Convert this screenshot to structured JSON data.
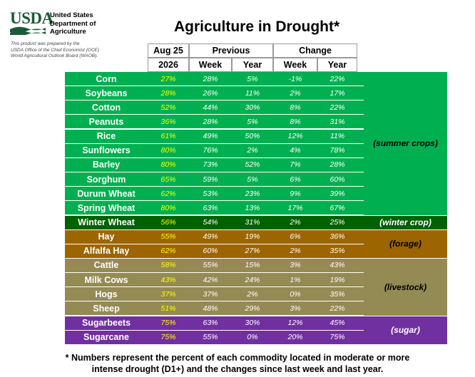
{
  "header": {
    "logo_text": "USDA",
    "org_lines": [
      "United States",
      "Department of",
      "Agriculture"
    ],
    "prepared_lines": [
      "This product was prepared by the",
      "USDA Office of the Chief Economist (OCE)",
      "World Agricultural Outlook Board (WAOB)."
    ],
    "title": "Agriculture in Drought*"
  },
  "table": {
    "header_top": {
      "current": "Aug 25",
      "previous": "Previous",
      "change": "Change"
    },
    "header_sub": {
      "current": "2026",
      "prev_week": "Week",
      "prev_year": "Year",
      "chg_week": "Week",
      "chg_year": "Year"
    },
    "rows": [
      {
        "name": "Corn",
        "current": "27%",
        "prev_week": "28%",
        "prev_year": "5%",
        "chg_week": "-1%",
        "chg_year": "22%",
        "group": "summer"
      },
      {
        "name": "Soybeans",
        "current": "28%",
        "prev_week": "26%",
        "prev_year": "11%",
        "chg_week": "2%",
        "chg_year": "17%",
        "group": "summer"
      },
      {
        "name": "Cotton",
        "current": "52%",
        "prev_week": "44%",
        "prev_year": "30%",
        "chg_week": "8%",
        "chg_year": "22%",
        "group": "summer"
      },
      {
        "name": "Peanuts",
        "current": "36%",
        "prev_week": "28%",
        "prev_year": "5%",
        "chg_week": "8%",
        "chg_year": "31%",
        "group": "summer"
      },
      {
        "name": "Rice",
        "current": "61%",
        "prev_week": "49%",
        "prev_year": "50%",
        "chg_week": "12%",
        "chg_year": "11%",
        "group": "summer"
      },
      {
        "name": "Sunflowers",
        "current": "80%",
        "prev_week": "76%",
        "prev_year": "2%",
        "chg_week": "4%",
        "chg_year": "78%",
        "group": "summer"
      },
      {
        "name": "Barley",
        "current": "80%",
        "prev_week": "73%",
        "prev_year": "52%",
        "chg_week": "7%",
        "chg_year": "28%",
        "group": "summer"
      },
      {
        "name": "Sorghum",
        "current": "65%",
        "prev_week": "59%",
        "prev_year": "5%",
        "chg_week": "6%",
        "chg_year": "60%",
        "group": "summer"
      },
      {
        "name": "Durum Wheat",
        "current": "62%",
        "prev_week": "53%",
        "prev_year": "23%",
        "chg_week": "9%",
        "chg_year": "39%",
        "group": "summer"
      },
      {
        "name": "Spring Wheat",
        "current": "80%",
        "prev_week": "63%",
        "prev_year": "13%",
        "chg_week": "17%",
        "chg_year": "67%",
        "group": "summer"
      },
      {
        "name": "Winter Wheat",
        "current": "56%",
        "prev_week": "54%",
        "prev_year": "31%",
        "chg_week": "2%",
        "chg_year": "25%",
        "group": "winter"
      },
      {
        "name": "Hay",
        "current": "55%",
        "prev_week": "49%",
        "prev_year": "19%",
        "chg_week": "6%",
        "chg_year": "36%",
        "group": "forage"
      },
      {
        "name": "Alfalfa Hay",
        "current": "62%",
        "prev_week": "60%",
        "prev_year": "27%",
        "chg_week": "2%",
        "chg_year": "35%",
        "group": "forage"
      },
      {
        "name": "Cattle",
        "current": "58%",
        "prev_week": "55%",
        "prev_year": "15%",
        "chg_week": "3%",
        "chg_year": "43%",
        "group": "livestock"
      },
      {
        "name": "Milk Cows",
        "current": "43%",
        "prev_week": "42%",
        "prev_year": "24%",
        "chg_week": "1%",
        "chg_year": "19%",
        "group": "livestock"
      },
      {
        "name": "Hogs",
        "current": "37%",
        "prev_week": "37%",
        "prev_year": "2%",
        "chg_week": "0%",
        "chg_year": "35%",
        "group": "livestock"
      },
      {
        "name": "Sheep",
        "current": "51%",
        "prev_week": "48%",
        "prev_year": "29%",
        "chg_week": "3%",
        "chg_year": "22%",
        "group": "livestock"
      },
      {
        "name": "Sugarbeets",
        "current": "75%",
        "prev_week": "63%",
        "prev_year": "30%",
        "chg_week": "12%",
        "chg_year": "45%",
        "group": "sugar"
      },
      {
        "name": "Sugarcane",
        "current": "75%",
        "prev_week": "55%",
        "prev_year": "0%",
        "chg_week": "20%",
        "chg_year": "75%",
        "group": "sugar"
      }
    ],
    "groups": {
      "summer": {
        "label": "(summer crops)",
        "bg": "#00b050",
        "text": "#000000",
        "name_text": "#ffffff",
        "current_text": "#ffff00",
        "value_text": "#ffffff"
      },
      "winter": {
        "label": "(winter crop)",
        "bg": "#006100",
        "text": "#ffffff",
        "name_text": "#ffffff",
        "current_text": "#ffff00",
        "value_text": "#ffffff"
      },
      "forage": {
        "label": "(forage)",
        "bg": "#9c6500",
        "text": "#000000",
        "name_text": "#ffffff",
        "current_text": "#ffff00",
        "value_text": "#ffffff"
      },
      "livestock": {
        "label": "(livestock)",
        "bg": "#948a54",
        "text": "#000000",
        "name_text": "#ffffff",
        "current_text": "#ffff00",
        "value_text": "#ffffff"
      },
      "sugar": {
        "label": "(sugar)",
        "bg": "#7030a0",
        "text": "#ffffff",
        "name_text": "#ffffff",
        "current_text": "#ffff00",
        "value_text": "#ffffff"
      }
    }
  },
  "footnote": {
    "line1": "* Numbers represent the percent of each commodity located in moderate or more",
    "line2": "intense drought (D1+) and the changes since last week and last year."
  }
}
